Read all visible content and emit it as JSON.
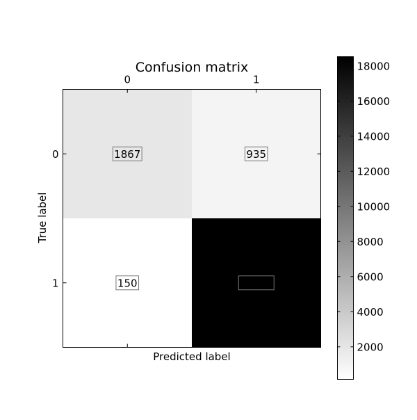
{
  "chart_data": {
    "type": "heatmap",
    "title": "Confusion matrix",
    "xlabel": "Predicted label",
    "ylabel": "True label",
    "x_ticks": [
      "0",
      "1"
    ],
    "y_ticks": [
      "0",
      "1"
    ],
    "matrix": [
      [
        1867,
        935
      ],
      [
        150,
        18528
      ]
    ],
    "colormap": "gray_r",
    "color_low": "#ffffff",
    "color_high": "#000000",
    "vmin": 150,
    "vmax": 18528,
    "colorbar_ticks": [
      2000,
      4000,
      6000,
      8000,
      10000,
      12000,
      14000,
      16000,
      18000
    ],
    "colorbar_tick_labels": [
      "2000",
      "4000",
      "6000",
      "8000",
      "10000",
      "12000",
      "14000",
      "16000",
      "18000"
    ]
  }
}
